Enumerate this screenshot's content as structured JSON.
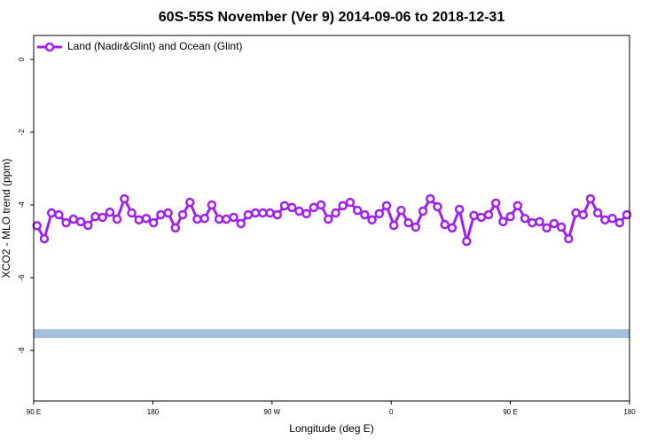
{
  "chart_data": {
    "type": "line",
    "title": "60S-55S November (Ver 9)   2014-09-06 to 2018-12-31",
    "xlabel": "Longitude (deg E)",
    "ylabel": "XCO2 - MLO trend (ppm)",
    "xlim": [
      90,
      540
    ],
    "xticks": [
      {
        "value": 90,
        "label": "90 E"
      },
      {
        "value": 180,
        "label": "180"
      },
      {
        "value": 270,
        "label": "90 W"
      },
      {
        "value": 360,
        "label": "0"
      },
      {
        "value": 450,
        "label": "90 E"
      },
      {
        "value": 540,
        "label": "180"
      }
    ],
    "ylim": [
      -9.39,
      0.66
    ],
    "yticks": [
      0,
      -2,
      -4,
      -6,
      -8
    ],
    "legend": "upper left",
    "reference_line": {
      "value": -7.54,
      "color": "#a6bddb"
    },
    "x": [
      92.5,
      98,
      103.5,
      109,
      114.5,
      120,
      125.5,
      131,
      136.5,
      142,
      147.5,
      153,
      158.5,
      164,
      169.5,
      175,
      180.5,
      186,
      191.5,
      197,
      202.5,
      208,
      213.5,
      219,
      224.5,
      230,
      235.5,
      241,
      246.5,
      252,
      257.5,
      263,
      268.5,
      274,
      279.5,
      285,
      290.5,
      296,
      301.5,
      307,
      312.5,
      318,
      323.5,
      329,
      334.5,
      340,
      345.5,
      351,
      356.5,
      362,
      367.5,
      373,
      378.5,
      384,
      389.5,
      395,
      400.5,
      406,
      411.5,
      417,
      422.5,
      428,
      433.5,
      439,
      444.5,
      450,
      455.5,
      461,
      466.5,
      472,
      477.5,
      483,
      488.5,
      494,
      499.5,
      505,
      510.5,
      516,
      521.5,
      527,
      532.5,
      538
    ],
    "series": [
      {
        "name": "Land (Nadir&Glint) and Ocean (Glint)",
        "color": "#a020f0",
        "values": [
          -4.57,
          -4.93,
          -4.22,
          -4.27,
          -4.49,
          -4.39,
          -4.46,
          -4.56,
          -4.32,
          -4.34,
          -4.2,
          -4.39,
          -3.83,
          -4.22,
          -4.41,
          -4.37,
          -4.49,
          -4.27,
          -4.22,
          -4.63,
          -4.27,
          -3.93,
          -4.39,
          -4.37,
          -4.0,
          -4.39,
          -4.39,
          -4.34,
          -4.51,
          -4.27,
          -4.22,
          -4.22,
          -4.22,
          -4.27,
          -4.02,
          -4.07,
          -4.17,
          -4.24,
          -4.07,
          -4.0,
          -4.39,
          -4.22,
          -4.02,
          -3.93,
          -4.15,
          -4.27,
          -4.41,
          -4.24,
          -4.02,
          -4.56,
          -4.15,
          -4.49,
          -4.61,
          -4.17,
          -3.83,
          -4.05,
          -4.54,
          -4.63,
          -4.12,
          -5.0,
          -4.29,
          -4.34,
          -4.27,
          -3.95,
          -4.46,
          -4.32,
          -4.02,
          -4.37,
          -4.49,
          -4.46,
          -4.63,
          -4.51,
          -4.61,
          -4.93,
          -4.22,
          -4.27,
          -3.83,
          -4.22,
          -4.41,
          -4.37,
          -4.49,
          -4.27
        ]
      }
    ]
  }
}
